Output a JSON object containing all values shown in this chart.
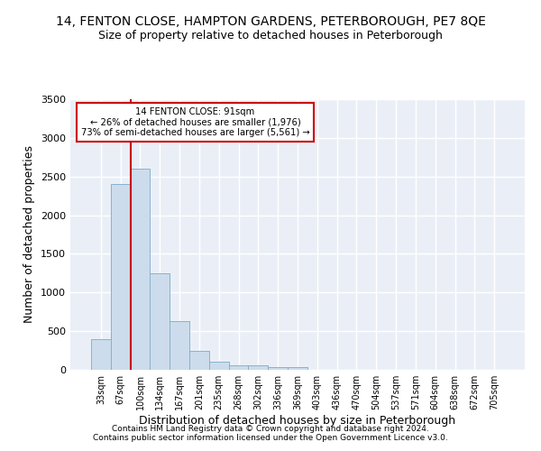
{
  "title": "14, FENTON CLOSE, HAMPTON GARDENS, PETERBOROUGH, PE7 8QE",
  "subtitle": "Size of property relative to detached houses in Peterborough",
  "xlabel": "Distribution of detached houses by size in Peterborough",
  "ylabel": "Number of detached properties",
  "bar_color": "#ccdcec",
  "bar_edge_color": "#7aaac8",
  "categories": [
    "33sqm",
    "67sqm",
    "100sqm",
    "134sqm",
    "167sqm",
    "201sqm",
    "235sqm",
    "268sqm",
    "302sqm",
    "336sqm",
    "369sqm",
    "403sqm",
    "436sqm",
    "470sqm",
    "504sqm",
    "537sqm",
    "571sqm",
    "604sqm",
    "638sqm",
    "672sqm",
    "705sqm"
  ],
  "values": [
    400,
    2400,
    2600,
    1250,
    630,
    250,
    100,
    60,
    60,
    30,
    30,
    0,
    0,
    0,
    0,
    0,
    0,
    0,
    0,
    0,
    0
  ],
  "ylim": [
    0,
    3500
  ],
  "yticks": [
    0,
    500,
    1000,
    1500,
    2000,
    2500,
    3000,
    3500
  ],
  "property_line_color": "#cc0000",
  "annotation_line1": "14 FENTON CLOSE: 91sqm",
  "annotation_line2": "← 26% of detached houses are smaller (1,976)",
  "annotation_line3": "73% of semi-detached houses are larger (5,561) →",
  "footnote1": "Contains HM Land Registry data © Crown copyright and database right 2024.",
  "footnote2": "Contains public sector information licensed under the Open Government Licence v3.0.",
  "background_color": "#eaeff7",
  "grid_color": "#ffffff",
  "title_fontsize": 10,
  "subtitle_fontsize": 9,
  "axis_label_fontsize": 9,
  "tick_fontsize": 8,
  "footnote_fontsize": 6.5
}
